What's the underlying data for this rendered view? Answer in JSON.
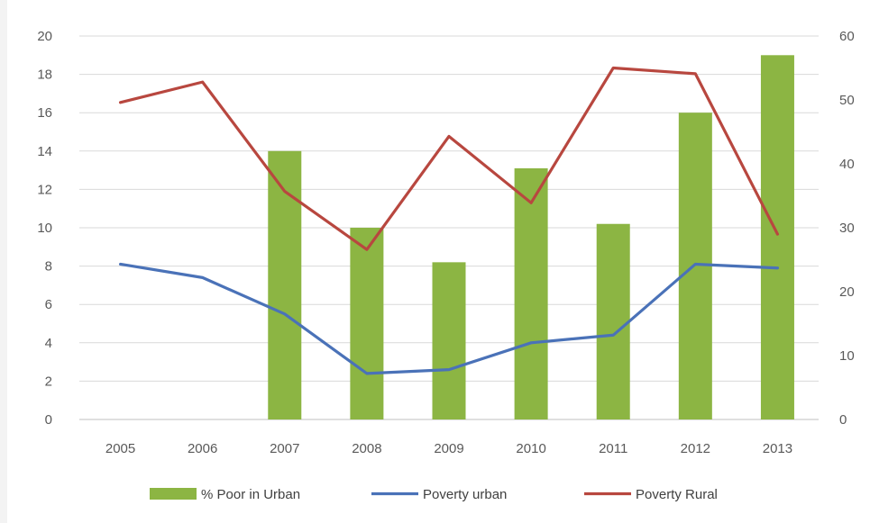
{
  "chart_data": {
    "type": "bar+line",
    "title": "",
    "xlabel": "",
    "ylabel": "",
    "categories": [
      "2005",
      "2006",
      "2007",
      "2008",
      "2009",
      "2010",
      "2011",
      "2012",
      "2013"
    ],
    "y_left": {
      "ylim": [
        0,
        20
      ],
      "ticks": [
        0,
        2,
        4,
        6,
        8,
        10,
        12,
        14,
        16,
        18,
        20
      ]
    },
    "y_right": {
      "ylim": [
        0,
        60
      ],
      "ticks": [
        0,
        10,
        20,
        30,
        40,
        50,
        60
      ]
    },
    "grid": true,
    "legend_position": "bottom",
    "series": [
      {
        "name": "% Poor in Urban",
        "type": "bar",
        "axis": "left",
        "color": "#8cb543",
        "values": [
          null,
          null,
          14.0,
          10.0,
          8.2,
          13.1,
          10.2,
          16.0,
          19.0
        ]
      },
      {
        "name": "Poverty urban",
        "type": "line",
        "axis": "left",
        "color": "#4a72b8",
        "values": [
          8.1,
          7.4,
          5.5,
          2.4,
          2.6,
          4.0,
          4.4,
          8.1,
          7.9
        ]
      },
      {
        "name": "Poverty Rural",
        "type": "line",
        "axis": "right",
        "color": "#b8473f",
        "values": [
          49.6,
          52.8,
          35.7,
          26.6,
          44.3,
          33.9,
          55.0,
          54.1,
          29.0
        ]
      }
    ]
  }
}
